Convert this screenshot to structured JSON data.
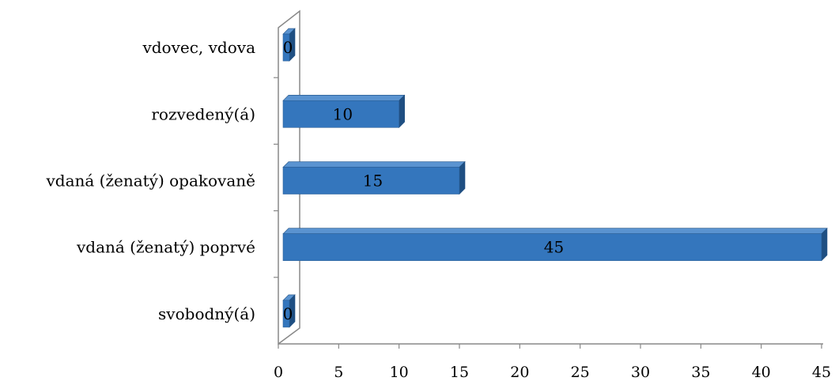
{
  "chart_data": {
    "type": "bar",
    "orientation": "horizontal",
    "style": "3d",
    "categories": [
      "svobodný(á)",
      "vdaná (ženatý) poprvé",
      "vdaná (ženatý) opakovaně",
      "rozvedený(á)",
      "vdovec, vdova"
    ],
    "values": [
      0,
      45,
      15,
      10,
      0
    ],
    "data_labels": [
      "0",
      "45",
      "15",
      "10",
      "0"
    ],
    "xlim": [
      0,
      45
    ],
    "x_ticks": [
      "0",
      "5",
      "10",
      "15",
      "20",
      "25",
      "30",
      "35",
      "40",
      "45"
    ],
    "title": "",
    "xlabel": "",
    "ylabel": "",
    "grid": false,
    "legend": "none",
    "colors": {
      "bar_front": "#3476bd",
      "bar_top": "#5a93d0",
      "bar_side": "#1f4f82",
      "axis": "#888888"
    }
  }
}
